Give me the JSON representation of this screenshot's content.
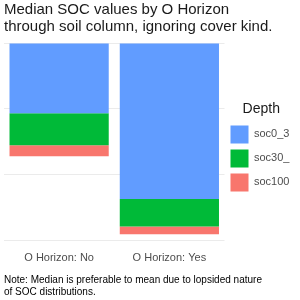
{
  "chart_data": {
    "type": "bar",
    "stacked": true,
    "title": [
      "Median SOC values by O Horizon",
      "through soil column, ignoring cover kind."
    ],
    "caption": [
      "Note: Median is preferable to mean due to lopsided nature",
      "of SOC distributions."
    ],
    "categories": [
      "O Horizon: No",
      "O Horizon: Yes"
    ],
    "legend_title": "Depth",
    "series": [
      {
        "name": "soc0_3",
        "color": "#619CFF",
        "values": [
          64,
          142
        ]
      },
      {
        "name": "soc30_",
        "color": "#00BA38",
        "values": [
          29,
          25
        ]
      },
      {
        "name": "soc100",
        "color": "#F8766D",
        "values": [
          10,
          7
        ]
      }
    ],
    "ylim": [
      180,
      0
    ],
    "yticks": [
      0,
      60,
      120,
      180
    ],
    "grid": true,
    "legend": "right",
    "tick_labels": "x"
  }
}
